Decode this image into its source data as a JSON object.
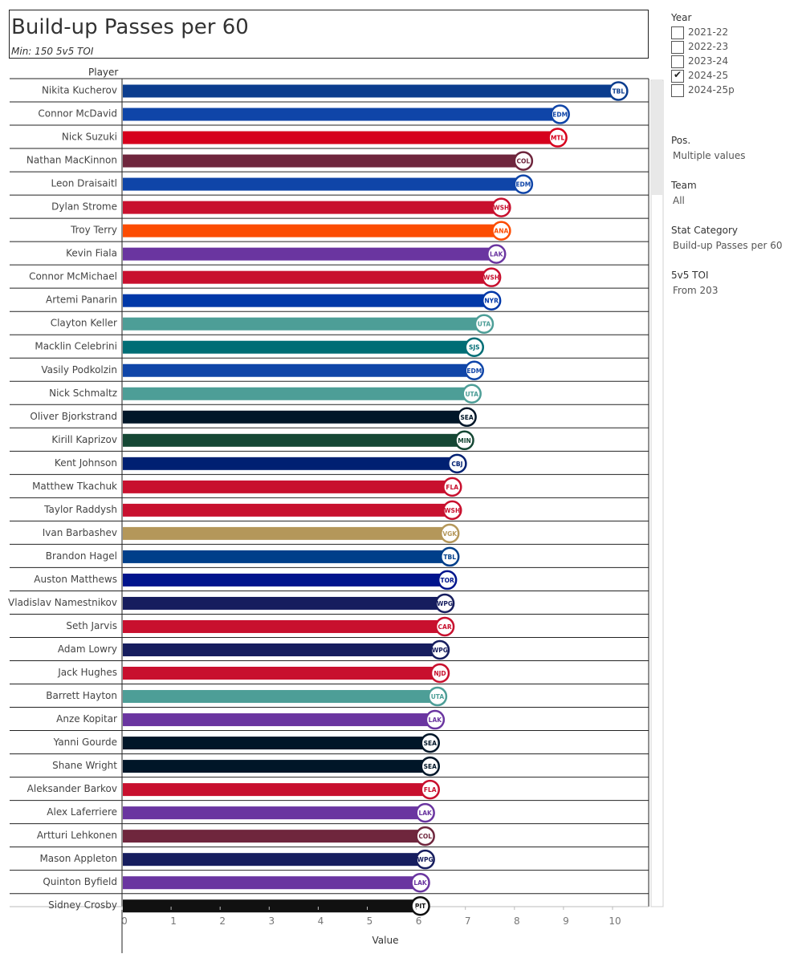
{
  "title": "Build-up Passes per 60",
  "subtitle": "Min: 150 5v5 TOI",
  "player_header": "Player",
  "filters": {
    "year": {
      "title": "Year",
      "options": [
        {
          "label": "2021-22",
          "checked": false
        },
        {
          "label": "2022-23",
          "checked": false
        },
        {
          "label": "2023-24",
          "checked": false
        },
        {
          "label": "2024-25",
          "checked": true
        },
        {
          "label": "2024-25p",
          "checked": false
        }
      ]
    },
    "pos": {
      "title": "Pos.",
      "value": "Multiple values"
    },
    "team": {
      "title": "Team",
      "value": "All"
    },
    "stat_category": {
      "title": "Stat Category",
      "value": "Build-up Passes per 60"
    },
    "toi": {
      "title": "5v5 TOI",
      "value": "From 203"
    }
  },
  "chart_data": {
    "type": "bar",
    "orientation": "horizontal",
    "title": "Build-up Passes per 60",
    "xlabel": "Value",
    "ylabel": "Player",
    "xlim": [
      0,
      10.7
    ],
    "xticks": [
      "0",
      "1",
      "2",
      "3",
      "4",
      "5",
      "6",
      "7",
      "8",
      "9",
      "10"
    ],
    "categories": [
      "Nikita Kucherov",
      "Connor McDavid",
      "Nick Suzuki",
      "Nathan MacKinnon",
      "Leon Draisaitl",
      "Dylan Strome",
      "Troy Terry",
      "Kevin Fiala",
      "Connor McMichael",
      "Artemi Panarin",
      "Clayton Keller",
      "Macklin Celebrini",
      "Vasily Podkolzin",
      "Nick Schmaltz",
      "Oliver Bjorkstrand",
      "Kirill Kaprizov",
      "Kent Johnson",
      "Matthew Tkachuk",
      "Taylor Raddysh",
      "Ivan Barbashev",
      "Brandon Hagel",
      "Auston Matthews",
      "Vladislav Namestnikov",
      "Seth Jarvis",
      "Adam Lowry",
      "Jack Hughes",
      "Barrett Hayton",
      "Anze Kopitar",
      "Yanni Gourde",
      "Shane Wright",
      "Aleksander Barkov",
      "Alex Laferriere",
      "Artturi Lehkonen",
      "Mason Appleton",
      "Quinton Byfield",
      "Sidney Crosby"
    ],
    "values": [
      9.99,
      8.8,
      8.75,
      8.05,
      8.05,
      7.6,
      7.6,
      7.5,
      7.4,
      7.4,
      7.25,
      7.05,
      7.05,
      7.0,
      6.9,
      6.85,
      6.7,
      6.6,
      6.6,
      6.55,
      6.55,
      6.5,
      6.45,
      6.45,
      6.35,
      6.35,
      6.3,
      6.25,
      6.15,
      6.15,
      6.15,
      6.05,
      6.05,
      6.05,
      5.95,
      5.95
    ],
    "teams": [
      "TBL",
      "EDM",
      "MTL",
      "COL",
      "EDM",
      "WSH",
      "ANA",
      "LAK",
      "WSH",
      "NYR",
      "UTA",
      "SJS",
      "EDM",
      "UTA",
      "SEA",
      "MIN",
      "CBJ",
      "FLA",
      "WSH",
      "VGK",
      "TBL",
      "TOR",
      "WPG",
      "CAR",
      "WPG",
      "NJD",
      "UTA",
      "LAK",
      "SEA",
      "SEA",
      "FLA",
      "LAK",
      "COL",
      "WPG",
      "LAK",
      "PIT"
    ],
    "colors": [
      "#0b3d8e",
      "#0f45a8",
      "#d6001c",
      "#6f263d",
      "#0f45a8",
      "#c8102e",
      "#fc4c02",
      "#6a35a0",
      "#c8102e",
      "#0038a8",
      "#4d9e97",
      "#006d75",
      "#0f45a8",
      "#4d9e97",
      "#001628",
      "#154734",
      "#002072",
      "#c8102e",
      "#c8102e",
      "#b4975a",
      "#003f8a",
      "#00148c",
      "#161d5e",
      "#c8102e",
      "#161d5e",
      "#c8102e",
      "#4d9e97",
      "#6a35a0",
      "#001628",
      "#001628",
      "#c8102e",
      "#6a35a0",
      "#6f263d",
      "#161d5e",
      "#6a35a0",
      "#111111"
    ]
  }
}
